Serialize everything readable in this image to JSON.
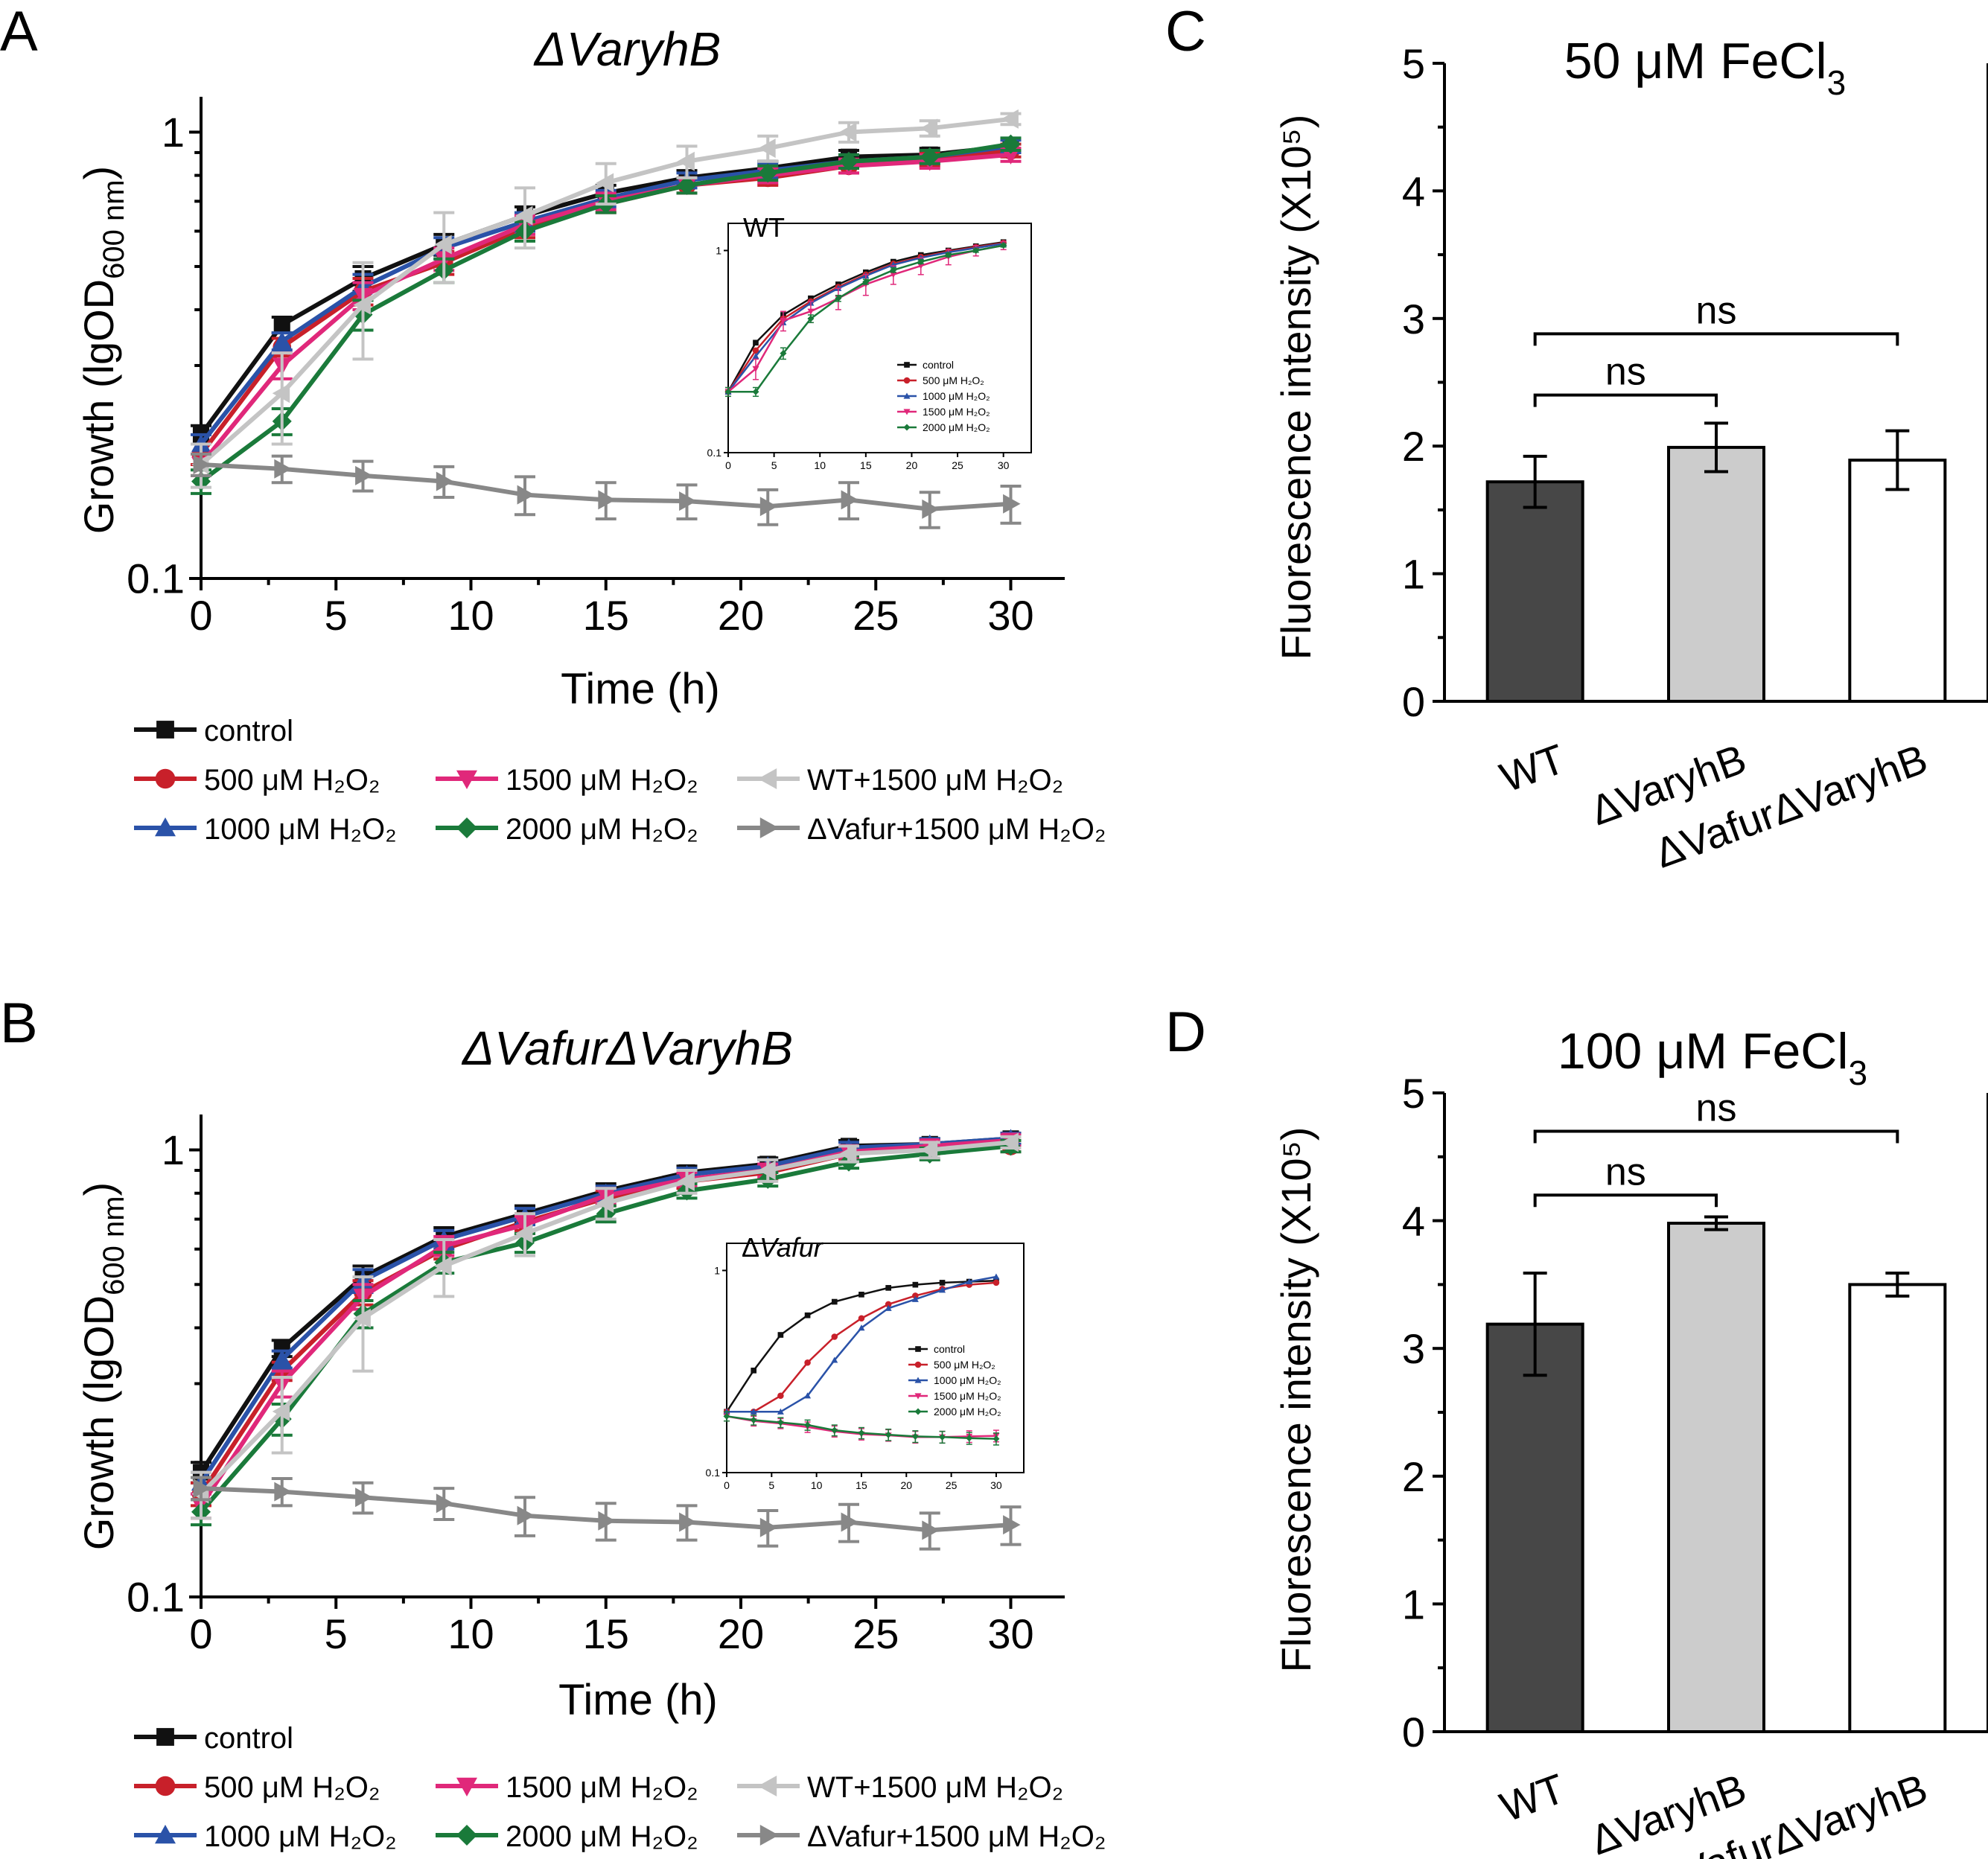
{
  "figure": {
    "panel_labels": [
      "A",
      "B",
      "C",
      "D"
    ],
    "series_styles": [
      {
        "key": "control",
        "color": "#111111",
        "marker": "square"
      },
      {
        "key": "h500",
        "color": "#c8202a",
        "marker": "circle"
      },
      {
        "key": "h1000",
        "color": "#2a52a8",
        "marker": "triangle-up"
      },
      {
        "key": "h1500",
        "color": "#e0287a",
        "marker": "triangle-down"
      },
      {
        "key": "h2000",
        "color": "#1a7a3a",
        "marker": "diamond"
      },
      {
        "key": "wt1500",
        "color": "#c4c4c4",
        "marker": "triangle-left"
      },
      {
        "key": "vafur1500",
        "color": "#888888",
        "marker": "triangle-right"
      }
    ],
    "legend": {
      "control": "control",
      "h500": "500 μM H₂O₂",
      "h1000": "1000 μM H₂O₂",
      "h1500": "1500 μM H₂O₂",
      "h2000": "2000 μM H₂O₂",
      "wt1500": "WT+1500 μM H₂O₂",
      "vafur1500": "ΔVafur+1500 μM H₂O₂"
    }
  },
  "chart_data": [
    {
      "id": "A",
      "type": "line",
      "title": "ΔVaryhB",
      "xlabel": "Time (h)",
      "ylabel": "Growth (lgOD600 nm)",
      "yscale": "log",
      "xlim": [
        0,
        32
      ],
      "ylim": [
        0.1,
        1.2
      ],
      "xticks": [
        "0",
        "5",
        "10",
        "15",
        "20",
        "25",
        "30"
      ],
      "yticks": [
        "0.1",
        "1"
      ],
      "x": [
        0,
        3,
        6,
        9,
        12,
        15,
        18,
        21,
        24,
        27,
        30
      ],
      "series": [
        {
          "key": "control",
          "values": [
            0.21,
            0.37,
            0.47,
            0.56,
            0.65,
            0.73,
            0.79,
            0.83,
            0.88,
            0.89,
            0.93
          ],
          "err": [
            0.01,
            0.015,
            0.03,
            0.03,
            0.03,
            0.03,
            0.03,
            0.03,
            0.03,
            0.03,
            0.03
          ]
        },
        {
          "key": "h500",
          "values": [
            0.19,
            0.33,
            0.44,
            0.51,
            0.61,
            0.69,
            0.76,
            0.79,
            0.84,
            0.87,
            0.91
          ],
          "err": [
            0.01,
            0.015,
            0.03,
            0.03,
            0.03,
            0.03,
            0.03,
            0.03,
            0.03,
            0.03,
            0.03
          ]
        },
        {
          "key": "h1000",
          "values": [
            0.2,
            0.34,
            0.45,
            0.55,
            0.63,
            0.71,
            0.78,
            0.82,
            0.86,
            0.88,
            0.93
          ],
          "err": [
            0.01,
            0.015,
            0.03,
            0.03,
            0.03,
            0.03,
            0.03,
            0.03,
            0.03,
            0.03,
            0.03
          ]
        },
        {
          "key": "h1500",
          "values": [
            0.18,
            0.3,
            0.43,
            0.52,
            0.62,
            0.7,
            0.76,
            0.8,
            0.84,
            0.86,
            0.89
          ],
          "err": [
            0.01,
            0.02,
            0.03,
            0.03,
            0.03,
            0.03,
            0.03,
            0.03,
            0.03,
            0.03,
            0.03
          ]
        },
        {
          "key": "h2000",
          "values": [
            0.165,
            0.225,
            0.39,
            0.49,
            0.6,
            0.69,
            0.76,
            0.81,
            0.86,
            0.88,
            0.94
          ],
          "err": [
            0.01,
            0.015,
            0.03,
            0.03,
            0.03,
            0.03,
            0.03,
            0.03,
            0.03,
            0.03,
            0.03
          ]
        },
        {
          "key": "wt1500",
          "values": [
            0.18,
            0.26,
            0.41,
            0.56,
            0.65,
            0.77,
            0.86,
            0.92,
            1.0,
            1.02,
            1.07
          ],
          "err": [
            0.02,
            0.06,
            0.1,
            0.1,
            0.1,
            0.08,
            0.07,
            0.06,
            0.05,
            0.04,
            0.03
          ]
        },
        {
          "key": "vafur1500",
          "values": [
            0.18,
            0.176,
            0.17,
            0.165,
            0.154,
            0.15,
            0.149,
            0.145,
            0.15,
            0.143,
            0.147
          ],
          "err": [
            0.01,
            0.012,
            0.013,
            0.013,
            0.015,
            0.014,
            0.013,
            0.013,
            0.014,
            0.013,
            0.014
          ]
        }
      ],
      "inset": {
        "label": "WT",
        "xticks": [
          "0",
          "5",
          "10",
          "15",
          "20",
          "25",
          "30"
        ],
        "yticks": [
          "0.1",
          "1"
        ],
        "legend": [
          {
            "key": "control",
            "label": "control"
          },
          {
            "key": "h500",
            "label": "500 μM H₂O₂"
          },
          {
            "key": "h1000",
            "label": "1000 μM H₂O₂"
          },
          {
            "key": "h1500",
            "label": "1500 μM H₂O₂"
          },
          {
            "key": "h2000",
            "label": "2000 μM H₂O₂"
          }
        ],
        "x": [
          0,
          3,
          6,
          9,
          12,
          15,
          18,
          21,
          24,
          27,
          30
        ],
        "series": [
          {
            "key": "control",
            "values": [
              0.2,
              0.35,
              0.48,
              0.58,
              0.68,
              0.78,
              0.88,
              0.95,
              1.0,
              1.05,
              1.1
            ],
            "err": [
              0,
              0,
              0,
              0,
              0,
              0,
              0,
              0,
              0,
              0,
              0
            ]
          },
          {
            "key": "h500",
            "values": [
              0.2,
              0.32,
              0.46,
              0.56,
              0.66,
              0.76,
              0.86,
              0.93,
              0.99,
              1.04,
              1.09
            ],
            "err": [
              0,
              0,
              0,
              0,
              0,
              0,
              0,
              0,
              0,
              0,
              0
            ]
          },
          {
            "key": "h1000",
            "values": [
              0.2,
              0.3,
              0.44,
              0.55,
              0.65,
              0.75,
              0.85,
              0.92,
              0.98,
              1.03,
              1.08
            ],
            "err": [
              0,
              0,
              0,
              0,
              0,
              0,
              0,
              0,
              0,
              0,
              0
            ]
          },
          {
            "key": "h1500",
            "values": [
              0.2,
              0.26,
              0.45,
              0.5,
              0.58,
              0.68,
              0.76,
              0.84,
              0.93,
              1.0,
              1.06
            ],
            "err": [
              0.01,
              0.03,
              0.05,
              0.06,
              0.07,
              0.08,
              0.08,
              0.08,
              0.08,
              0.06,
              0.05
            ]
          },
          {
            "key": "h2000",
            "values": [
              0.2,
              0.2,
              0.31,
              0.46,
              0.58,
              0.7,
              0.8,
              0.88,
              0.95,
              1.0,
              1.06
            ],
            "err": [
              0.01,
              0.01,
              0.02,
              0.02,
              0.02,
              0.02,
              0.02,
              0.02,
              0.02,
              0.02,
              0.02
            ]
          }
        ]
      }
    },
    {
      "id": "B",
      "type": "line",
      "title": "ΔVafurΔVaryhB",
      "xlabel": "Time (h)",
      "ylabel": "Growth (lgOD600 nm)",
      "yscale": "log",
      "xlim": [
        0,
        32
      ],
      "ylim": [
        0.1,
        1.2
      ],
      "xticks": [
        "0",
        "5",
        "10",
        "15",
        "20",
        "25",
        "30"
      ],
      "yticks": [
        "0.1",
        "1"
      ],
      "x": [
        0,
        3,
        6,
        9,
        12,
        15,
        18,
        21,
        24,
        27,
        30
      ],
      "series": [
        {
          "key": "control",
          "values": [
            0.19,
            0.36,
            0.52,
            0.64,
            0.72,
            0.81,
            0.89,
            0.93,
            1.02,
            1.03,
            1.06
          ],
          "err": [
            0.01,
            0.015,
            0.03,
            0.03,
            0.03,
            0.03,
            0.03,
            0.03,
            0.03,
            0.03,
            0.03
          ]
        },
        {
          "key": "h500",
          "values": [
            0.17,
            0.32,
            0.48,
            0.6,
            0.69,
            0.78,
            0.85,
            0.89,
            0.98,
            1.01,
            1.02
          ],
          "err": [
            0.01,
            0.015,
            0.03,
            0.03,
            0.03,
            0.03,
            0.03,
            0.03,
            0.03,
            0.03,
            0.03
          ]
        },
        {
          "key": "h1000",
          "values": [
            0.18,
            0.34,
            0.51,
            0.63,
            0.71,
            0.8,
            0.88,
            0.92,
            1.01,
            1.03,
            1.06
          ],
          "err": [
            0.01,
            0.015,
            0.03,
            0.03,
            0.03,
            0.03,
            0.03,
            0.03,
            0.03,
            0.03,
            0.03
          ]
        },
        {
          "key": "h1500",
          "values": [
            0.16,
            0.3,
            0.47,
            0.61,
            0.68,
            0.79,
            0.86,
            0.9,
            0.99,
            1.02,
            1.05
          ],
          "err": [
            0.01,
            0.02,
            0.03,
            0.03,
            0.03,
            0.03,
            0.03,
            0.03,
            0.03,
            0.03,
            0.03
          ]
        },
        {
          "key": "h2000",
          "values": [
            0.155,
            0.25,
            0.43,
            0.56,
            0.62,
            0.72,
            0.81,
            0.86,
            0.94,
            0.98,
            1.02
          ],
          "err": [
            0.01,
            0.02,
            0.03,
            0.03,
            0.03,
            0.03,
            0.03,
            0.03,
            0.03,
            0.03,
            0.03
          ]
        },
        {
          "key": "wt1500",
          "values": [
            0.17,
            0.26,
            0.42,
            0.55,
            0.65,
            0.76,
            0.85,
            0.9,
            0.98,
            1.0,
            1.04
          ],
          "err": [
            0.02,
            0.05,
            0.1,
            0.08,
            0.07,
            0.06,
            0.05,
            0.05,
            0.04,
            0.04,
            0.03
          ]
        },
        {
          "key": "vafur1500",
          "values": [
            0.175,
            0.172,
            0.167,
            0.162,
            0.152,
            0.148,
            0.147,
            0.143,
            0.147,
            0.141,
            0.145
          ],
          "err": [
            0.01,
            0.012,
            0.013,
            0.013,
            0.015,
            0.014,
            0.013,
            0.013,
            0.014,
            0.013,
            0.014
          ]
        }
      ],
      "inset": {
        "label": "ΔVafur",
        "xticks": [
          "0",
          "5",
          "10",
          "15",
          "20",
          "25",
          "30"
        ],
        "yticks": [
          "0.1",
          "1"
        ],
        "legend": [
          {
            "key": "control",
            "label": "control"
          },
          {
            "key": "h500",
            "label": "500 μM H₂O₂"
          },
          {
            "key": "h1000",
            "label": "1000 μM H₂O₂"
          },
          {
            "key": "h1500",
            "label": "1500 μM H₂O₂"
          },
          {
            "key": "h2000",
            "label": "2000 μM H₂O₂"
          }
        ],
        "x": [
          0,
          3,
          6,
          9,
          12,
          15,
          18,
          21,
          24,
          27,
          30
        ],
        "series": [
          {
            "key": "control",
            "values": [
              0.2,
              0.32,
              0.48,
              0.6,
              0.7,
              0.76,
              0.82,
              0.85,
              0.87,
              0.88,
              0.89
            ],
            "err": [
              0,
              0,
              0,
              0,
              0,
              0,
              0,
              0,
              0,
              0,
              0
            ]
          },
          {
            "key": "h500",
            "values": [
              0.2,
              0.2,
              0.24,
              0.35,
              0.47,
              0.58,
              0.68,
              0.75,
              0.81,
              0.85,
              0.87
            ],
            "err": [
              0,
              0,
              0,
              0,
              0,
              0,
              0,
              0,
              0,
              0,
              0
            ]
          },
          {
            "key": "h1000",
            "values": [
              0.2,
              0.2,
              0.2,
              0.24,
              0.36,
              0.52,
              0.65,
              0.72,
              0.8,
              0.88,
              0.93
            ],
            "err": [
              0,
              0,
              0,
              0,
              0,
              0,
              0,
              0,
              0,
              0,
              0
            ]
          },
          {
            "key": "h1500",
            "values": [
              0.19,
              0.18,
              0.175,
              0.168,
              0.16,
              0.155,
              0.153,
              0.15,
              0.15,
              0.151,
              0.152
            ],
            "err": [
              0.01,
              0.01,
              0.01,
              0.01,
              0.01,
              0.01,
              0.01,
              0.01,
              0.01,
              0.01,
              0.01
            ]
          },
          {
            "key": "h2000",
            "values": [
              0.19,
              0.182,
              0.177,
              0.172,
              0.162,
              0.157,
              0.154,
              0.151,
              0.15,
              0.148,
              0.147
            ],
            "err": [
              0.01,
              0.01,
              0.01,
              0.01,
              0.01,
              0.01,
              0.01,
              0.01,
              0.01,
              0.01,
              0.01
            ]
          }
        ]
      }
    },
    {
      "id": "C",
      "type": "bar",
      "title": "50 μM FeCl3",
      "ylabel": "Fluorescence intensity (X10⁵)",
      "ylim": [
        0,
        5
      ],
      "yticks": [
        "0",
        "1",
        "2",
        "3",
        "4",
        "5"
      ],
      "categories": [
        "WT",
        "ΔVaryhB",
        "ΔVafurΔVaryhB"
      ],
      "values": [
        1.72,
        1.99,
        1.89
      ],
      "err": [
        0.2,
        0.19,
        0.23
      ],
      "colors": [
        "#474747",
        "#cccccc",
        "#ffffff"
      ],
      "annotations": [
        {
          "from": 0,
          "to": 1,
          "text": "ns",
          "y": 2.4
        },
        {
          "from": 0,
          "to": 2,
          "text": "ns",
          "y": 2.88
        }
      ]
    },
    {
      "id": "D",
      "type": "bar",
      "title": "100 μM FeCl3",
      "ylabel": "Fluorescence intensity (X10⁵)",
      "ylim": [
        0,
        5
      ],
      "yticks": [
        "0",
        "1",
        "2",
        "3",
        "4",
        "5"
      ],
      "categories": [
        "WT",
        "ΔVaryhB",
        "ΔVafurΔVaryhB"
      ],
      "values": [
        3.19,
        3.98,
        3.5
      ],
      "err": [
        0.4,
        0.05,
        0.09
      ],
      "colors": [
        "#474747",
        "#cccccc",
        "#ffffff"
      ],
      "annotations": [
        {
          "from": 0,
          "to": 1,
          "text": "ns",
          "y": 4.2
        },
        {
          "from": 0,
          "to": 2,
          "text": "ns",
          "y": 4.7
        }
      ]
    }
  ]
}
